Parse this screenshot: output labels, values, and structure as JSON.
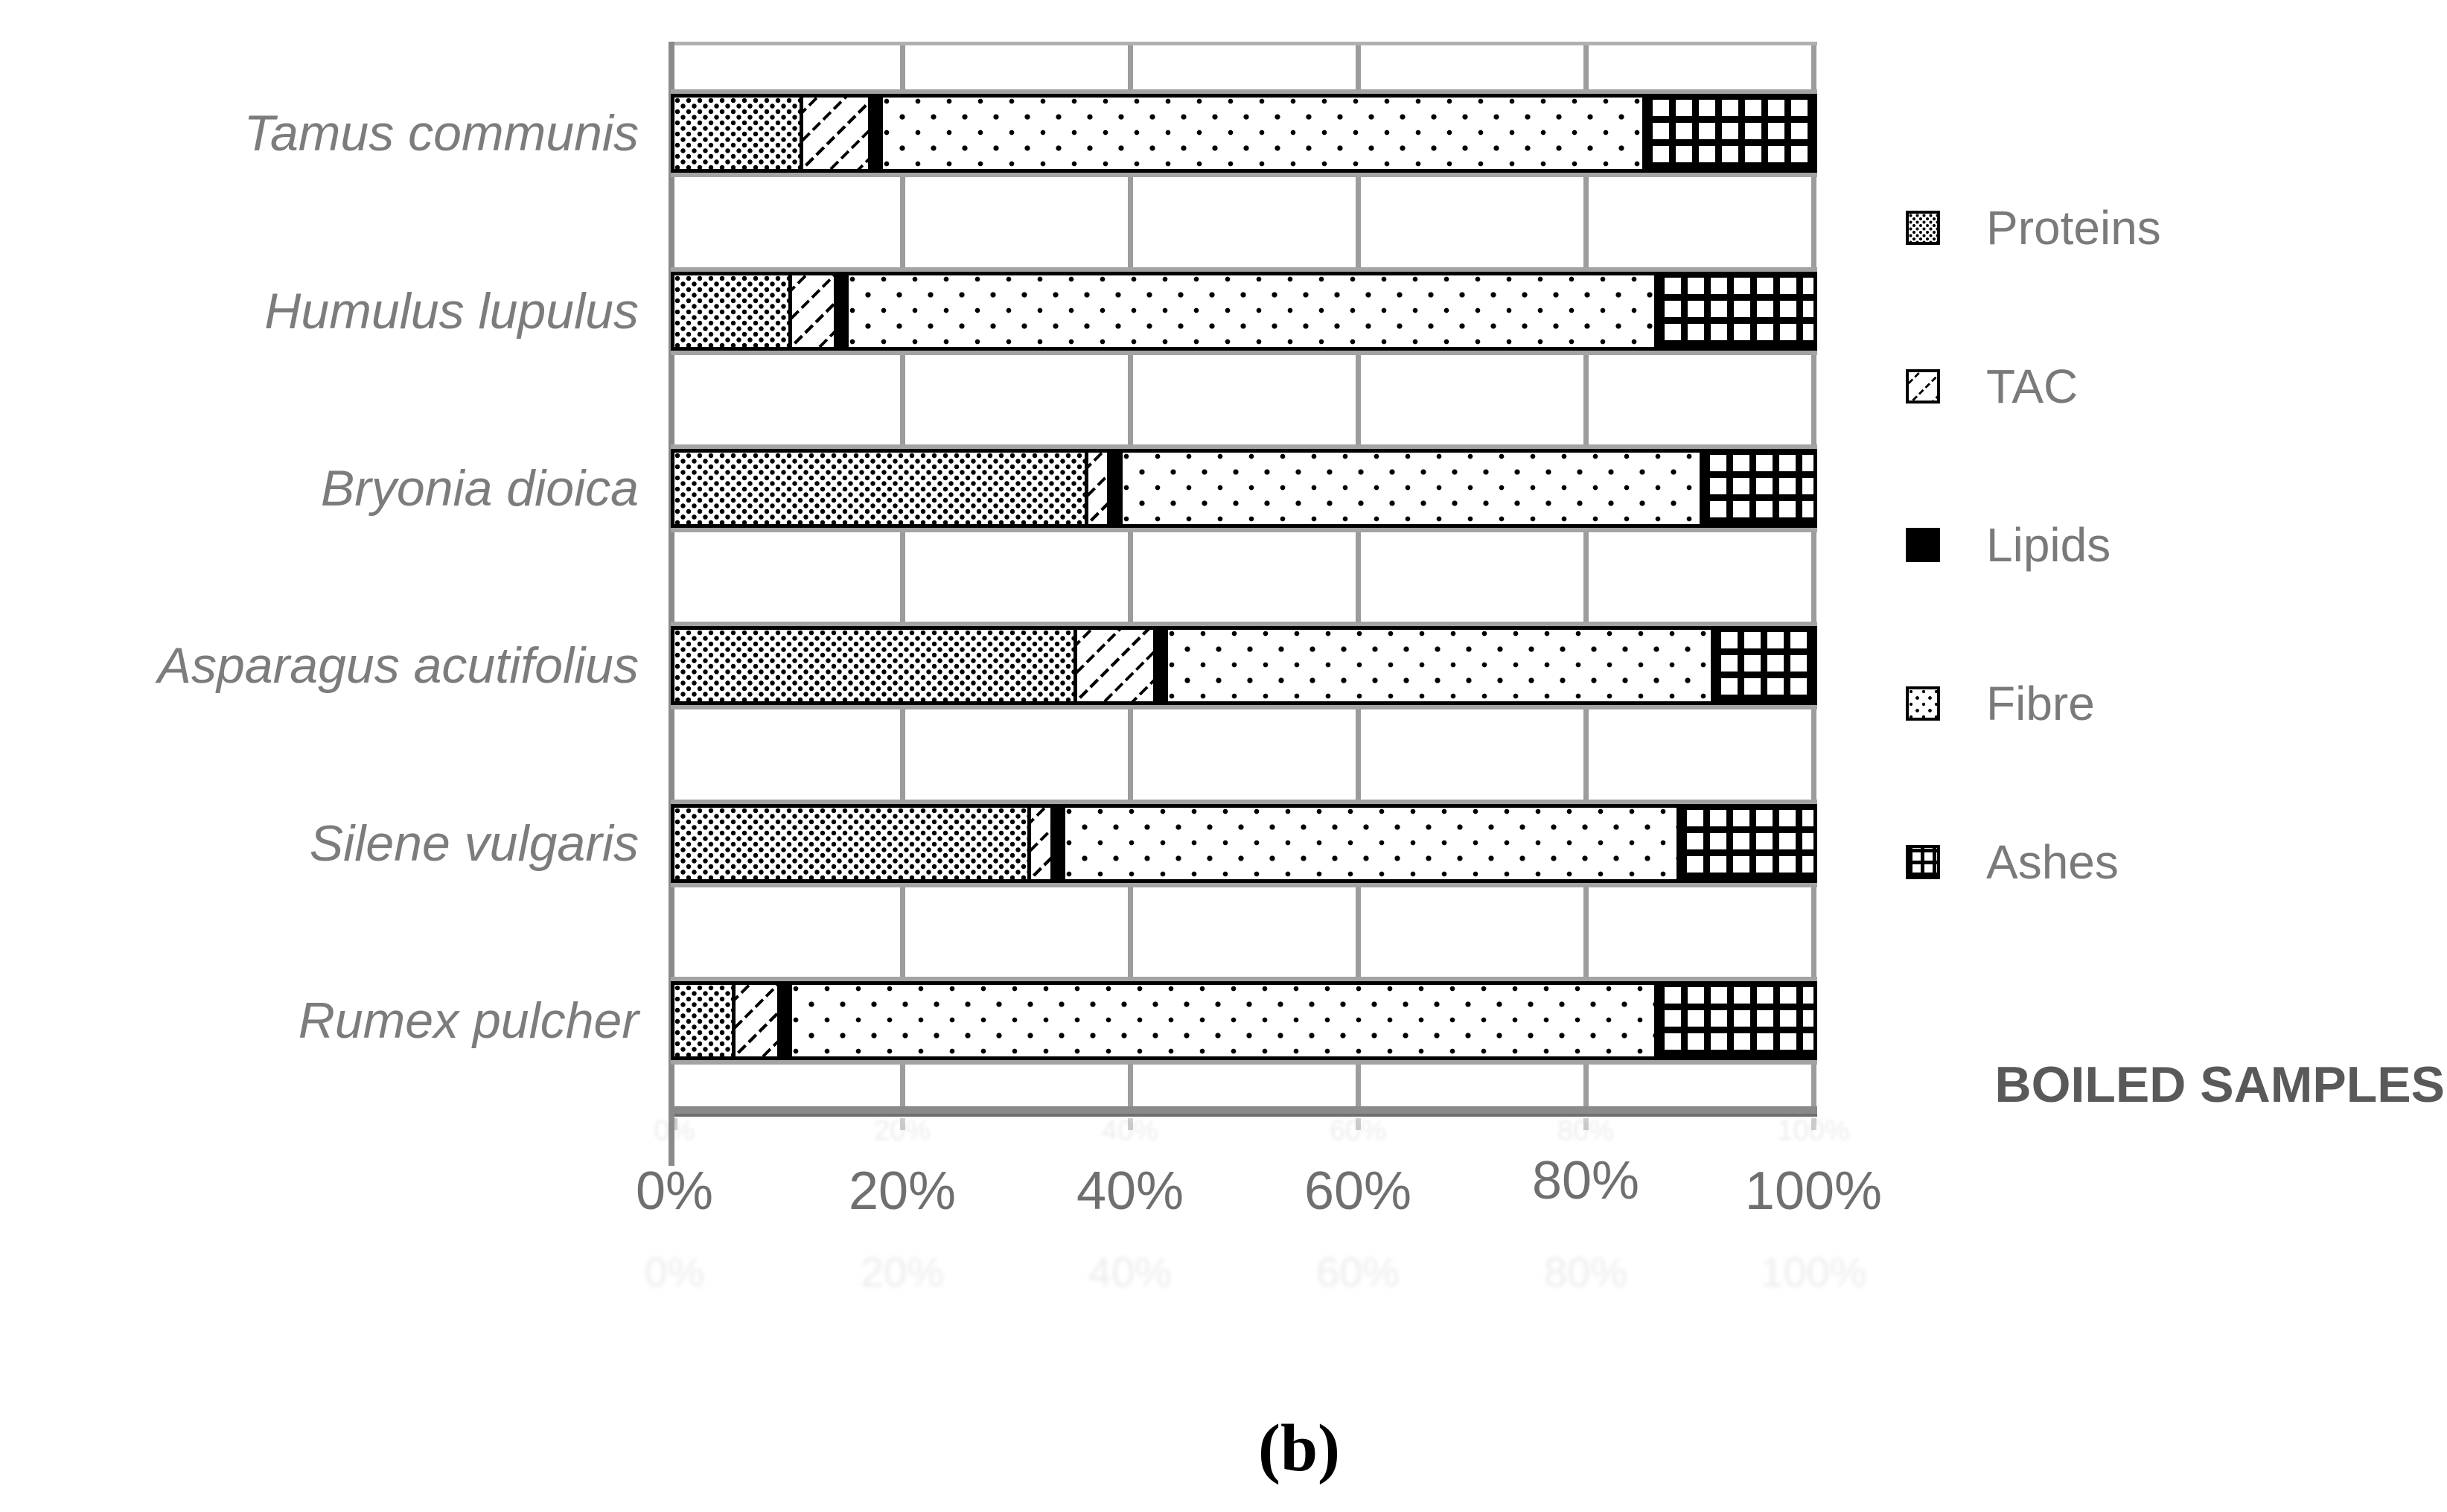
{
  "figure": {
    "caption": "(b)",
    "group_label": "BOILED SAMPLES"
  },
  "chart_data": {
    "type": "bar",
    "orientation": "horizontal-stacked",
    "title": "",
    "xlabel": "",
    "ylabel": "",
    "units": "%",
    "xlim": [
      0,
      100
    ],
    "grid": true,
    "legend_position": "right",
    "categories": [
      "Tamus communis",
      "Humulus lupulus",
      "Bryonia dioica",
      "Asparagus acutifolius",
      "Silene vulgaris",
      "Rumex pulcher"
    ],
    "series": [
      {
        "name": "Proteins",
        "values": [
          11,
          10,
          36,
          35,
          31,
          5
        ]
      },
      {
        "name": "TAC",
        "values": [
          6,
          4,
          2,
          7,
          2,
          4
        ]
      },
      {
        "name": "Lipids",
        "values": [
          1,
          1,
          1,
          1,
          1,
          1
        ]
      },
      {
        "name": "Fibre",
        "values": [
          67,
          71,
          51,
          48,
          54,
          76
        ]
      },
      {
        "name": "Ashes",
        "values": [
          15,
          14,
          10,
          9,
          12,
          14
        ]
      }
    ],
    "x_ticks": [
      "0%",
      "20%",
      "40%",
      "60%",
      "80%",
      "100%"
    ]
  },
  "legend": {
    "items": [
      {
        "label": "Proteins",
        "pattern": "proteins"
      },
      {
        "label": "TAC",
        "pattern": "tac"
      },
      {
        "label": "Lipids",
        "pattern": "lipids"
      },
      {
        "label": "Fibre",
        "pattern": "fibre"
      },
      {
        "label": "Ashes",
        "pattern": "ashes"
      }
    ]
  },
  "colors": {
    "pattern_black": "#000000",
    "grid_gray": "#9c9c9c",
    "axis_gray": "#8a8a8a",
    "category_text_gray": "#7c7c7c",
    "tick_text_gray": "#6f6f6f",
    "legend_text_gray": "#7a7a7a",
    "group_label_gray": "#595959",
    "caption_black": "#000000",
    "background": "#ffffff"
  }
}
